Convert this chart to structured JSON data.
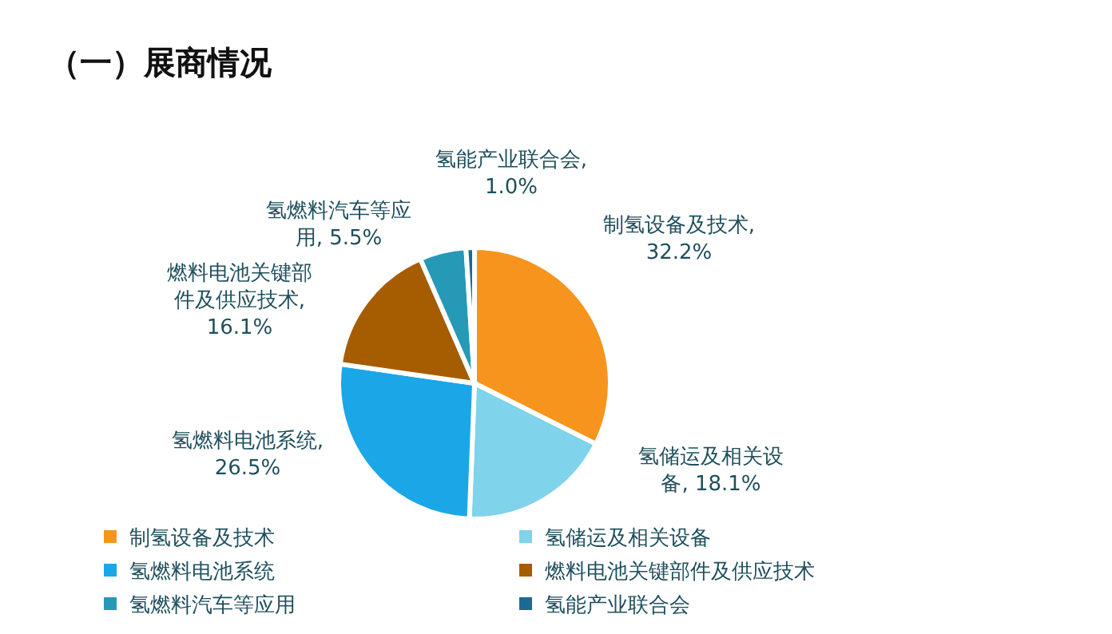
{
  "chart_data": {
    "type": "pie",
    "title": "（一）展商情况",
    "categories": [
      "制氢设备及技术",
      "氢储运及相关设备",
      "氢燃料电池系统",
      "燃料电池关键部件及供应技术",
      "氢燃料汽车等应用",
      "氢能产业联合会"
    ],
    "values": [
      32.2,
      18.1,
      26.5,
      16.1,
      5.5,
      1.0
    ],
    "value_labels": [
      ", 32.2%",
      ", 18.1%",
      ", 26.5%",
      ", 16.1%",
      ", 5.5%",
      ", 1.0%"
    ],
    "colors": [
      "#f7941d",
      "#7fd3ea",
      "#1ba6e8",
      "#a65c00",
      "#2699b6",
      "#1c6a94"
    ],
    "legend": "bottom"
  }
}
